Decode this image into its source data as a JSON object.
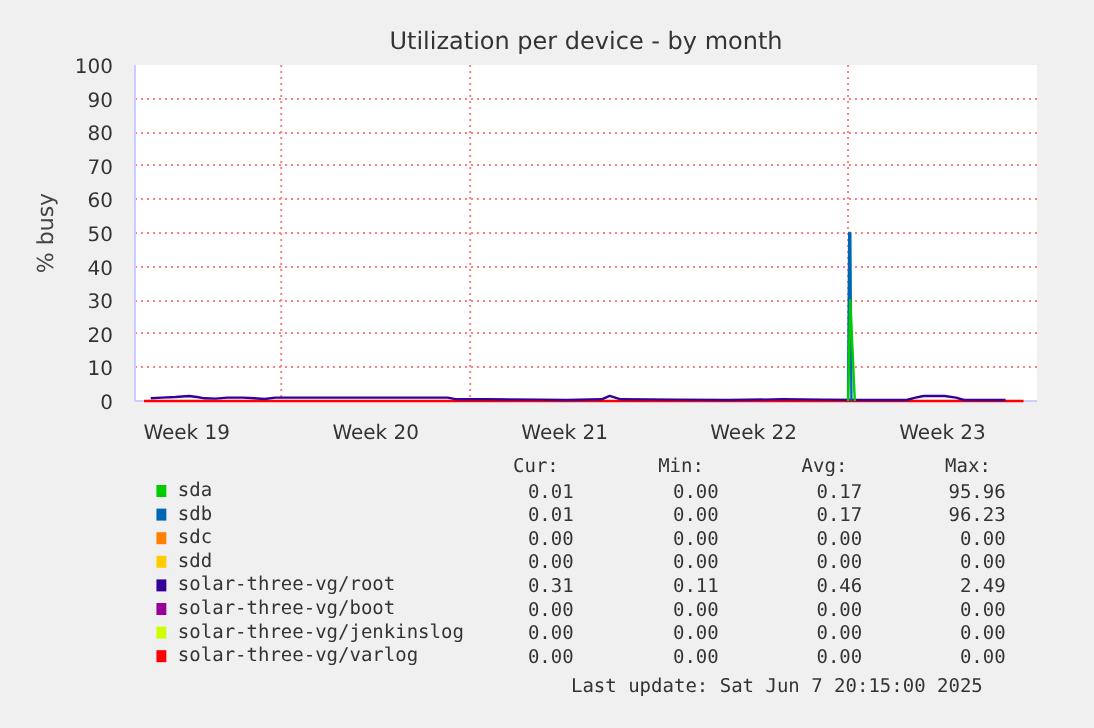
{
  "chart_data": {
    "type": "line",
    "title": "Utilization per device - by month",
    "ylabel": "% busy",
    "xlim": [
      "2025-05-06T14:00",
      "2025-06-09T00:00"
    ],
    "xticks": [
      {
        "value": "2025-05-08T12:00",
        "label": "Week 19"
      },
      {
        "value": "2025-05-15T12:00",
        "label": "Week 20"
      },
      {
        "value": "2025-05-22T12:00",
        "label": "Week 21"
      },
      {
        "value": "2025-05-29T12:00",
        "label": "Week 22"
      },
      {
        "value": "2025-06-05T12:00",
        "label": "Week 23"
      }
    ],
    "ylim": [
      0,
      100
    ],
    "yticks": [
      0,
      10,
      20,
      30,
      40,
      50,
      60,
      70,
      80,
      90,
      100
    ],
    "grid": "y",
    "legend": "bottom",
    "marker": "none",
    "line_style": "solid",
    "ref_lines": [
      {
        "axis": "x",
        "value": "2025-05-12",
        "label": null,
        "color": "#ff8080",
        "line_style": "dotted"
      },
      {
        "axis": "x",
        "value": "2025-05-19",
        "label": null,
        "color": "#ff8080",
        "line_style": "dotted"
      },
      {
        "axis": "x",
        "value": "2025-06-02",
        "label": null,
        "color": "#ff8080",
        "line_style": "dotted"
      }
    ],
    "series": [
      {
        "name": "sda",
        "color": "#00cc00",
        "x": [
          "2025-06-02T00:00",
          "2025-06-02T02:00",
          "2025-06-02T06:00"
        ],
        "values": [
          0,
          30,
          0
        ]
      },
      {
        "name": "sdb",
        "color": "#0066b3",
        "x": [
          "2025-06-02T00:00",
          "2025-06-02T01:00",
          "2025-06-02T02:00",
          "2025-06-02T03:00"
        ],
        "values": [
          0,
          50,
          50,
          0
        ]
      },
      {
        "name": "sdc",
        "color": "#ff8000",
        "values": [
          null
        ]
      },
      {
        "name": "sdd",
        "color": "#ffcc00",
        "values": [
          null
        ]
      },
      {
        "name": "solar-three-vg/root",
        "color": "#330099",
        "x": [
          "2025-05-07T04:00",
          "2025-05-07T14:00",
          "2025-05-08T02:00",
          "2025-05-08T14:00",
          "2025-05-08T21:00",
          "2025-05-09T04:00",
          "2025-05-09T14:00",
          "2025-05-10T00:00",
          "2025-05-10T14:00",
          "2025-05-11T00:00",
          "2025-05-11T09:00",
          "2025-05-11T19:00",
          "2025-05-12T14:00",
          "2025-05-13T14:00",
          "2025-05-14T14:00",
          "2025-05-15T14:00",
          "2025-05-16T14:00",
          "2025-05-18T04:00",
          "2025-05-18T12:00",
          "2025-05-19T14:00",
          "2025-05-21T14:00",
          "2025-05-22T14:00",
          "2025-05-23T21:00",
          "2025-05-24T04:00",
          "2025-05-24T14:00",
          "2025-05-26T14:00",
          "2025-05-28T14:00",
          "2025-05-30T14:00",
          "2025-06-01T02:00",
          "2025-06-02T14:00",
          "2025-06-04T04:00",
          "2025-06-04T12:00",
          "2025-06-04T19:00",
          "2025-06-05T14:00",
          "2025-06-06T00:00",
          "2025-06-06T07:00",
          "2025-06-07T20:00"
        ],
        "values": [
          0.8,
          1.0,
          1.2,
          1.5,
          1.2,
          0.8,
          0.7,
          1.0,
          1.0,
          0.8,
          0.6,
          1.0,
          1.0,
          1.0,
          1.0,
          1.0,
          1.0,
          1.0,
          0.5,
          0.5,
          0.4,
          0.3,
          0.5,
          1.5,
          0.5,
          0.4,
          0.3,
          0.5,
          0.4,
          0.3,
          0.3,
          1.0,
          1.5,
          1.5,
          1.0,
          0.3,
          0.3
        ]
      },
      {
        "name": "solar-three-vg/boot",
        "color": "#990099",
        "values": [
          null
        ]
      },
      {
        "name": "solar-three-vg/jenkinslog",
        "color": "#ccff00",
        "values": [
          null
        ]
      },
      {
        "name": "solar-three-vg/varlog",
        "color": "#ff0000",
        "x": [
          "2025-05-06T22:00",
          "2025-06-08T12:00"
        ],
        "values": [
          0,
          0
        ]
      }
    ],
    "annotations": [
      "Cur:",
      "Min:",
      "Avg:",
      "Max:",
      "0.01",
      "0.00",
      "0.17",
      "95.96",
      "0.01",
      "0.00",
      "0.17",
      "96.23",
      "0.00",
      "0.00",
      "0.00",
      "0.00",
      "0.00",
      "0.00",
      "0.00",
      "0.00",
      "0.31",
      "0.11",
      "0.46",
      "2.49",
      "0.00",
      "0.00",
      "0.00",
      "0.00",
      "0.00",
      "0.00",
      "0.00",
      "0.00",
      "0.00",
      "0.00",
      "0.00",
      "0.00",
      "Last update:  Sat Jun  7 20:15:00 2025"
    ]
  }
}
